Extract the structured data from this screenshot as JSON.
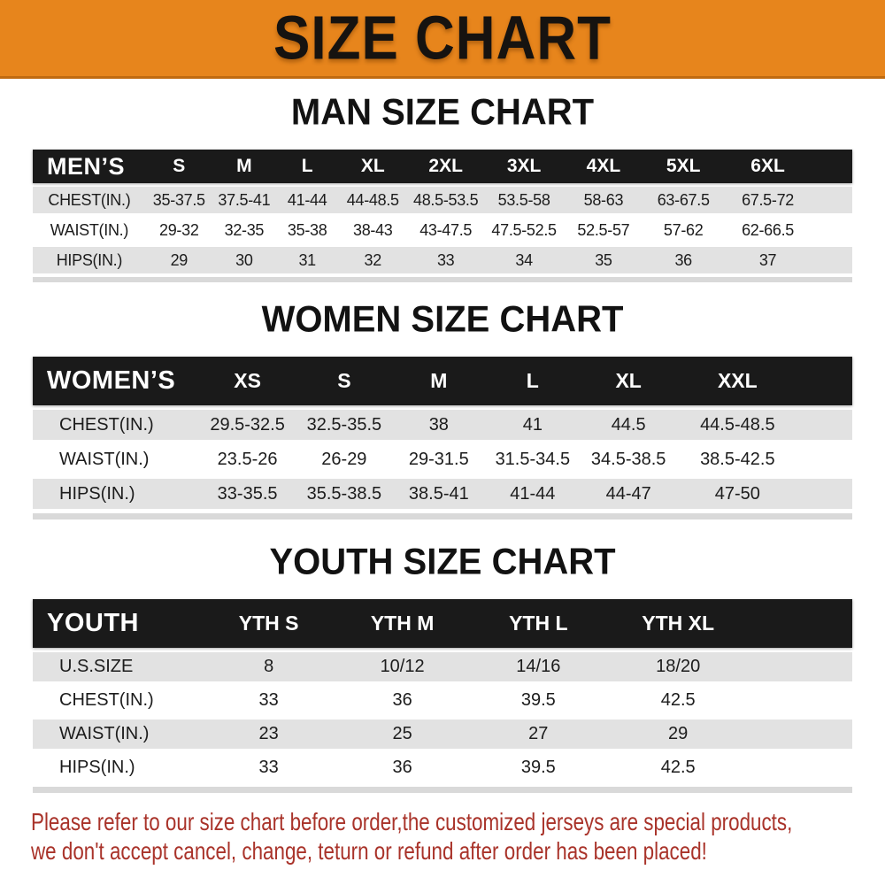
{
  "banner": {
    "title": "SIZE CHART"
  },
  "colors": {
    "banner_bg": "#E7851C",
    "banner_border": "#C06A10",
    "header_bar_bg": "#1A1A1A",
    "row_gray": "#E2E2E2",
    "row_white": "#FFFFFF",
    "disclaimer_red": "#A9332A",
    "text_black": "#1C1C1C"
  },
  "men": {
    "heading": "MAN SIZE CHART",
    "label": "MEN’S",
    "columns": [
      "S",
      "M",
      "L",
      "XL",
      "2XL",
      "3XL",
      "4XL",
      "5XL",
      "6XL"
    ],
    "rows": [
      {
        "label": "CHEST(IN.)",
        "values": [
          "35-37.5",
          "37.5-41",
          "41-44",
          "44-48.5",
          "48.5-53.5",
          "53.5-58",
          "58-63",
          "63-67.5",
          "67.5-72"
        ]
      },
      {
        "label": "WAIST(IN.)",
        "values": [
          "29-32",
          "32-35",
          "35-38",
          "38-43",
          "43-47.5",
          "47.5-52.5",
          "52.5-57",
          "57-62",
          "62-66.5"
        ]
      },
      {
        "label": "HIPS(IN.)",
        "values": [
          "29",
          "30",
          "31",
          "32",
          "33",
          "34",
          "35",
          "36",
          "37"
        ]
      }
    ]
  },
  "women": {
    "heading": "WOMEN SIZE CHART",
    "label": "WOMEN’S",
    "columns": [
      "XS",
      "S",
      "M",
      "L",
      "XL",
      "XXL"
    ],
    "rows": [
      {
        "label": "CHEST(IN.)",
        "values": [
          "29.5-32.5",
          "32.5-35.5",
          "38",
          "41",
          "44.5",
          "44.5-48.5"
        ]
      },
      {
        "label": "WAIST(IN.)",
        "values": [
          "23.5-26",
          "26-29",
          "29-31.5",
          "31.5-34.5",
          "34.5-38.5",
          "38.5-42.5"
        ]
      },
      {
        "label": "HIPS(IN.)",
        "values": [
          "33-35.5",
          "35.5-38.5",
          "38.5-41",
          "41-44",
          "44-47",
          "47-50"
        ]
      }
    ]
  },
  "youth": {
    "heading": "YOUTH SIZE CHART",
    "label": "YOUTH",
    "columns": [
      "YTH S",
      "YTH M",
      "YTH L",
      "YTH XL"
    ],
    "rows": [
      {
        "label": "U.S.SIZE",
        "values": [
          "8",
          "10/12",
          "14/16",
          "18/20"
        ]
      },
      {
        "label": "CHEST(IN.)",
        "values": [
          "33",
          "36",
          "39.5",
          "42.5"
        ]
      },
      {
        "label": "WAIST(IN.)",
        "values": [
          "23",
          "25",
          "27",
          "29"
        ]
      },
      {
        "label": "HIPS(IN.)",
        "values": [
          "33",
          "36",
          "39.5",
          "42.5"
        ]
      }
    ]
  },
  "disclaimer": {
    "line1": "Please refer to our size chart before order,the customized jerseys are special products,",
    "line2": "we don't accept cancel, change, teturn or refund after order has been placed!"
  }
}
